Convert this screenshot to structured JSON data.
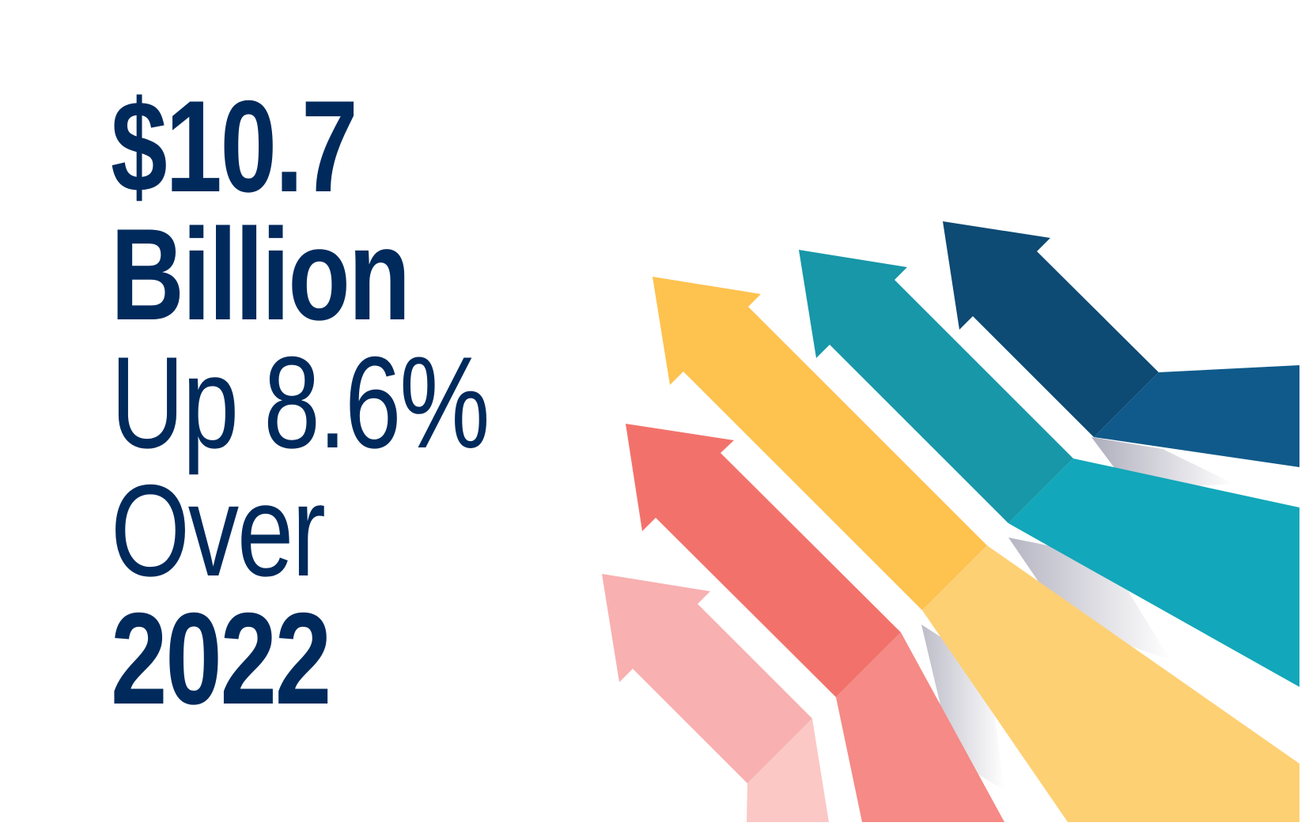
{
  "headline": {
    "amount": "$10.7",
    "unit": "Billion",
    "change": "Up 8.6%",
    "comparison": "Over",
    "year": "2022"
  },
  "arrows": [
    {
      "name": "navy-arrow",
      "head_color": "#0d4a74",
      "tail_color": "#0f5a8a"
    },
    {
      "name": "teal-arrow",
      "head_color": "#1797a8",
      "tail_color": "#12a7ba"
    },
    {
      "name": "yellow-arrow",
      "head_color": "#fec24f",
      "tail_color": "#fed074"
    },
    {
      "name": "coral-arrow",
      "head_color": "#f2726b",
      "tail_color": "#f58a86"
    },
    {
      "name": "pink-arrow",
      "head_color": "#f8b0b0",
      "tail_color": "#fbc8c6"
    }
  ],
  "colors": {
    "text": "#002a5c",
    "background": "#ffffff"
  }
}
